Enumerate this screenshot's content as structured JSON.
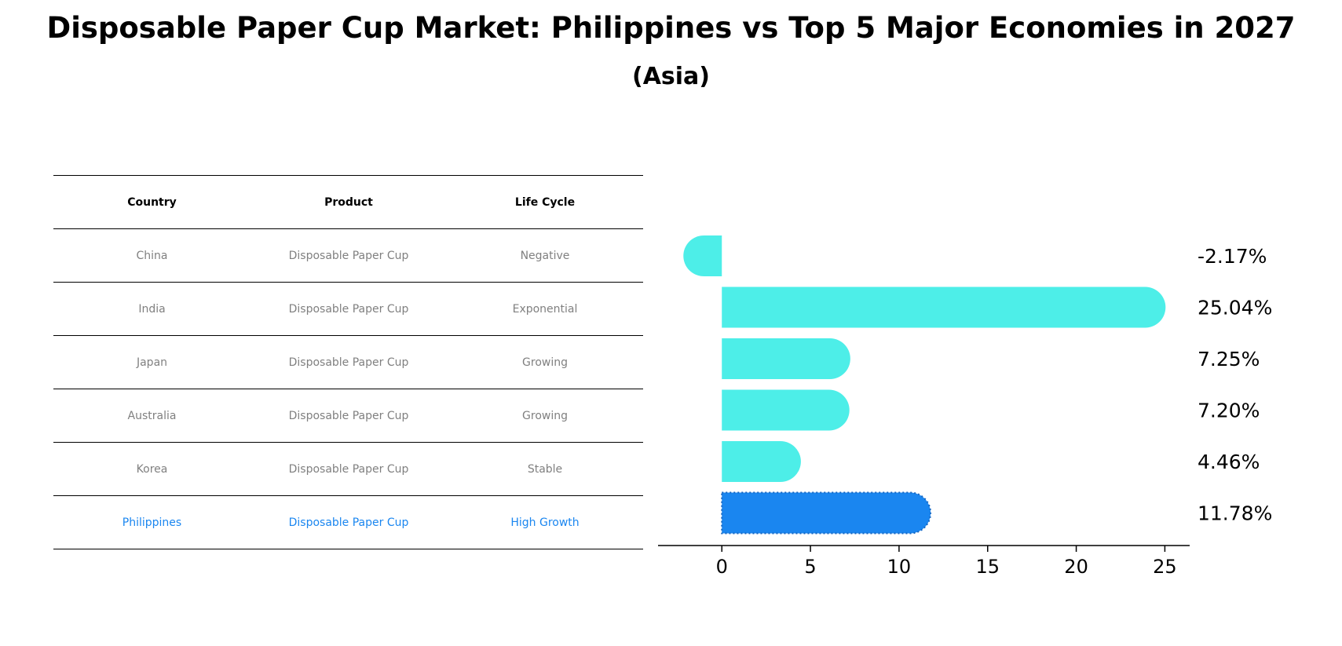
{
  "title": "Disposable Paper Cup Market: Philippines vs Top 5 Major Economies in 2027",
  "subtitle": "(Asia)",
  "table": {
    "headers": [
      "Country",
      "Product",
      "Life Cycle"
    ],
    "rows": [
      [
        "China",
        "Disposable Paper Cup",
        "Negative"
      ],
      [
        "India",
        "Disposable Paper Cup",
        "Exponential"
      ],
      [
        "Japan",
        "Disposable Paper Cup",
        "Growing"
      ],
      [
        "Australia",
        "Disposable Paper Cup",
        "Growing"
      ],
      [
        "Korea",
        "Disposable Paper Cup",
        "Stable"
      ],
      [
        "Philippines",
        "Disposable Paper Cup",
        "High Growth"
      ]
    ],
    "highlight_row": 5
  },
  "colors": {
    "bar": "#4deee8",
    "highlight": "#1a86f0",
    "text_muted": "#808080"
  },
  "chart_data": {
    "type": "bar",
    "orientation": "horizontal",
    "categories": [
      "China",
      "India",
      "Japan",
      "Australia",
      "Korea",
      "Philippines"
    ],
    "values": [
      -2.17,
      25.04,
      7.25,
      7.2,
      4.46,
      11.78
    ],
    "value_labels": [
      "-2.17%",
      "25.04%",
      "7.25%",
      "7.20%",
      "4.46%",
      "11.78%"
    ],
    "highlight_index": 5,
    "xlim": [
      -3.6,
      26.4
    ],
    "xticks": [
      0,
      5,
      10,
      15,
      20,
      25
    ],
    "grid": false,
    "title": "",
    "xlabel": "",
    "ylabel": ""
  }
}
